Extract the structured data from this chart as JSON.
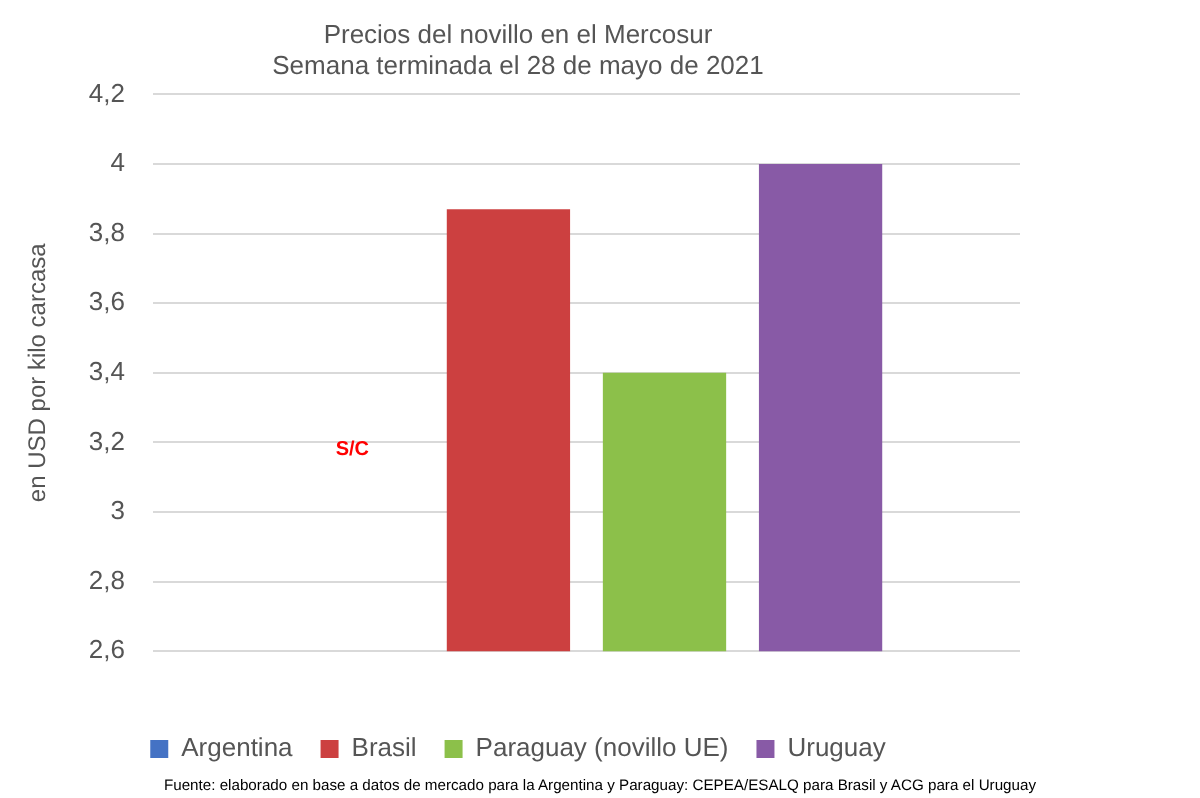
{
  "chart_data": {
    "type": "bar",
    "title": "Precios del novillo en el Mercosur",
    "subtitle": "Semana terminada el 28 de mayo de 2021",
    "ylabel": "en USD por kilo carcasa",
    "categories": [
      null
    ],
    "series": [
      {
        "name": "Argentina",
        "color": "#4472c4",
        "values": [
          null
        ]
      },
      {
        "name": "Brasil",
        "color": "#cc4040",
        "values": [
          3.87
        ]
      },
      {
        "name": "Paraguay (novillo UE)",
        "color": "#8cc04a",
        "values": [
          3.4
        ]
      },
      {
        "name": "Uruguay",
        "color": "#885aa6",
        "values": [
          4.0
        ]
      }
    ],
    "ylim": [
      2.6,
      4.2
    ],
    "yticks": [
      {
        "value": 2.6,
        "label": "2,6"
      },
      {
        "value": 2.8,
        "label": "2,8"
      },
      3,
      {
        "value": 3.2,
        "label": "3,2"
      },
      {
        "value": 3.4,
        "label": "3,4"
      },
      {
        "value": 3.6,
        "label": "3,6"
      },
      {
        "value": 3.8,
        "label": "3,8"
      },
      4,
      {
        "value": 4.2,
        "label": "4,2"
      }
    ],
    "grid": "y",
    "legend": "bottom",
    "annotations": [
      "S/C",
      "Fuente: elaborado en base a datos de mercado para la Argentina y Paraguay: CEPEA/ESALQ para Brasil y ACG para el Uruguay"
    ]
  }
}
